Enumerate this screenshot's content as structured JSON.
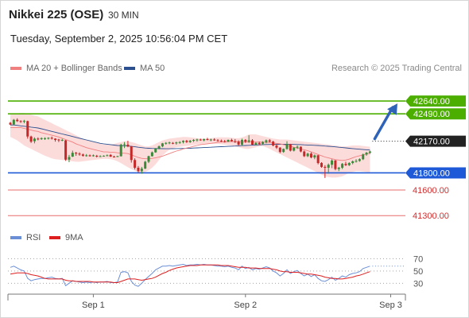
{
  "header": {
    "title": "Nikkei 225 (OSE)",
    "interval": "30 MIN",
    "datetime": "Tuesday, September 2, 2025 10:56:04 PM CET",
    "credit": "Research © 2025 Trading Central"
  },
  "legend": {
    "ma20_label": "MA 20 + Bollinger Bands",
    "ma50_label": "MA 50",
    "rsi_label": "RSI",
    "rsi_ma_label": "9MA"
  },
  "colors": {
    "up": "#3a8a3a",
    "down": "#c62828",
    "ma20": "#f07f7f",
    "ma50": "#2b4f8f",
    "band": "#fbd5d5",
    "resistance": "#4caf00",
    "support": "#1e5ad8",
    "target_line": "#e86b6b",
    "last_price": "#222222",
    "arrow": "#2f63b8",
    "rsi": "#6a8fd6",
    "rsi_ma": "#dd1f1f"
  },
  "chart_data": {
    "type": "candlestick",
    "price_levels": [
      {
        "value": 42640.0,
        "label": "42640.00",
        "kind": "resistance"
      },
      {
        "value": 42490.0,
        "label": "42490.00",
        "kind": "resistance"
      },
      {
        "value": 42170.0,
        "label": "42170.00",
        "kind": "last"
      },
      {
        "value": 41800.0,
        "label": "41800.00",
        "kind": "support"
      },
      {
        "value": 41600.0,
        "label": "41600.00",
        "kind": "target"
      },
      {
        "value": 41300.0,
        "label": "41300.00",
        "kind": "target"
      }
    ],
    "last_price": 42170,
    "arrow_target": 42640,
    "price_ylim": [
      41200,
      42780
    ],
    "x_labels": [
      "Sep 1",
      "Sep 2",
      "Sep 3"
    ],
    "x_label_index": [
      24,
      68,
      110
    ],
    "candles": [
      [
        42385,
        42395,
        42360,
        42365
      ],
      [
        42365,
        42430,
        42360,
        42420
      ],
      [
        42420,
        42438,
        42395,
        42405
      ],
      [
        42405,
        42415,
        42385,
        42400
      ],
      [
        42400,
        42420,
        42380,
        42408
      ],
      [
        42405,
        42410,
        42200,
        42225
      ],
      [
        42225,
        42235,
        42150,
        42165
      ],
      [
        42170,
        42215,
        42145,
        42200
      ],
      [
        42200,
        42215,
        42180,
        42195
      ],
      [
        42195,
        42215,
        42185,
        42205
      ],
      [
        42205,
        42215,
        42185,
        42205
      ],
      [
        42205,
        42215,
        42190,
        42210
      ],
      [
        42210,
        42225,
        42190,
        42200
      ],
      [
        42200,
        42205,
        42165,
        42185
      ],
      [
        42190,
        42198,
        42160,
        42180
      ],
      [
        42180,
        42198,
        42170,
        42185
      ],
      [
        42180,
        42185,
        41940,
        41955
      ],
      [
        41955,
        42010,
        41925,
        41985
      ],
      [
        41990,
        42060,
        41985,
        42035
      ],
      [
        42035,
        42045,
        42000,
        42025
      ],
      [
        42025,
        42040,
        42000,
        42015
      ],
      [
        42015,
        42025,
        41990,
        42000
      ],
      [
        42000,
        42020,
        41990,
        42005
      ],
      [
        42005,
        42015,
        41990,
        41995
      ],
      [
        41995,
        42015,
        41990,
        42005
      ],
      [
        42000,
        42010,
        41980,
        41990
      ],
      [
        41990,
        42005,
        41985,
        41995
      ],
      [
        41995,
        42005,
        41990,
        42000
      ],
      [
        42000,
        42015,
        41995,
        42005
      ],
      [
        42010,
        42020,
        41985,
        41990
      ],
      [
        41990,
        42000,
        41980,
        41985
      ],
      [
        41990,
        42000,
        41985,
        41995
      ],
      [
        41995,
        42140,
        41990,
        42130
      ],
      [
        42130,
        42160,
        42090,
        42135
      ],
      [
        42130,
        42175,
        42100,
        42110
      ],
      [
        42110,
        42115,
        41920,
        41950
      ],
      [
        41950,
        41970,
        41840,
        41860
      ],
      [
        41860,
        41880,
        41800,
        41820
      ],
      [
        41820,
        41870,
        41790,
        41850
      ],
      [
        41850,
        41940,
        41845,
        41930
      ],
      [
        41930,
        42000,
        41915,
        41995
      ],
      [
        41995,
        42050,
        41990,
        42040
      ],
      [
        42040,
        42090,
        42035,
        42085
      ],
      [
        42085,
        42120,
        42075,
        42110
      ],
      [
        42110,
        42150,
        42100,
        42145
      ],
      [
        42145,
        42160,
        42130,
        42150
      ],
      [
        42150,
        42165,
        42135,
        42155
      ],
      [
        42150,
        42160,
        42135,
        42145
      ],
      [
        42145,
        42165,
        42130,
        42155
      ],
      [
        42155,
        42170,
        42140,
        42160
      ],
      [
        42160,
        42180,
        42145,
        42175
      ],
      [
        42175,
        42185,
        42150,
        42160
      ],
      [
        42160,
        42185,
        42150,
        42175
      ],
      [
        42175,
        42195,
        42160,
        42185
      ],
      [
        42185,
        42200,
        42165,
        42190
      ],
      [
        42190,
        42200,
        42175,
        42180
      ],
      [
        42180,
        42200,
        42170,
        42195
      ],
      [
        42195,
        42210,
        42180,
        42185
      ],
      [
        42185,
        42200,
        42170,
        42190
      ],
      [
        42190,
        42205,
        42175,
        42180
      ],
      [
        42180,
        42195,
        42165,
        42175
      ],
      [
        42175,
        42190,
        42160,
        42170
      ],
      [
        42170,
        42185,
        42155,
        42165
      ],
      [
        42165,
        42190,
        42160,
        42185
      ],
      [
        42185,
        42200,
        42165,
        42170
      ],
      [
        42170,
        42195,
        42150,
        42165
      ],
      [
        42165,
        42180,
        42120,
        42130
      ],
      [
        42130,
        42200,
        42120,
        42185
      ],
      [
        42185,
        42195,
        42150,
        42165
      ],
      [
        42165,
        42240,
        42150,
        42180
      ],
      [
        42180,
        42195,
        42120,
        42130
      ],
      [
        42130,
        42160,
        42120,
        42150
      ],
      [
        42150,
        42165,
        42125,
        42135
      ],
      [
        42140,
        42170,
        42130,
        42160
      ],
      [
        42160,
        42190,
        42145,
        42180
      ],
      [
        42180,
        42195,
        42155,
        42165
      ],
      [
        42165,
        42175,
        42110,
        42120
      ],
      [
        42120,
        42140,
        42080,
        42095
      ],
      [
        42095,
        42100,
        42030,
        42045
      ],
      [
        42045,
        42085,
        42035,
        42080
      ],
      [
        42080,
        42170,
        42070,
        42135
      ],
      [
        42135,
        42140,
        42050,
        42060
      ],
      [
        42060,
        42100,
        42050,
        42095
      ],
      [
        42095,
        42120,
        42080,
        42105
      ],
      [
        42105,
        42110,
        42040,
        42050
      ],
      [
        42050,
        42060,
        41985,
        41995
      ],
      [
        41995,
        42035,
        41985,
        42025
      ],
      [
        42025,
        42040,
        41970,
        41980
      ],
      [
        41980,
        42015,
        41960,
        42005
      ],
      [
        42005,
        42010,
        41900,
        41915
      ],
      [
        41915,
        41925,
        41860,
        41870
      ],
      [
        41870,
        41890,
        41740,
        41860
      ],
      [
        41860,
        41910,
        41790,
        41895
      ],
      [
        41895,
        41960,
        41855,
        41945
      ],
      [
        41945,
        41950,
        41830,
        41845
      ],
      [
        41845,
        41870,
        41820,
        41860
      ],
      [
        41860,
        41915,
        41845,
        41905
      ],
      [
        41905,
        41930,
        41880,
        41890
      ],
      [
        41890,
        41925,
        41880,
        41915
      ],
      [
        41915,
        41945,
        41900,
        41935
      ],
      [
        41935,
        41960,
        41920,
        41940
      ],
      [
        41940,
        41970,
        41930,
        41960
      ],
      [
        41960,
        42025,
        41950,
        42015
      ],
      [
        42015,
        42045,
        42000,
        42035
      ],
      [
        42035,
        42060,
        42020,
        42050
      ]
    ],
    "ma20": [
      42330,
      42330,
      42330,
      42330,
      42320,
      42310,
      42300,
      42290,
      42285,
      42270,
      42260,
      42250,
      42240,
      42230,
      42220,
      42205,
      42190,
      42175,
      42160,
      42140,
      42125,
      42110,
      42095,
      42085,
      42075,
      42065,
      42055,
      42045,
      42045,
      42040,
      42040,
      42035,
      42030,
      42030,
      42025,
      42010,
      41995,
      41980,
      41970,
      41965,
      41965,
      41970,
      41975,
      41985,
      41995,
      42010,
      42025,
      42040,
      42055,
      42065,
      42080,
      42090,
      42100,
      42110,
      42120,
      42130,
      42135,
      42140,
      42145,
      42150,
      42155,
      42160,
      42160,
      42165,
      42165,
      42165,
      42165,
      42160,
      42160,
      42160,
      42160,
      42160,
      42160,
      42160,
      42155,
      42155,
      42150,
      42145,
      42140,
      42130,
      42120,
      42110,
      42100,
      42090,
      42080,
      42070,
      42060,
      42045,
      42030,
      42015,
      42000,
      41985,
      41975,
      41965,
      41955,
      41950,
      41945,
      41950,
      41960,
      41975,
      41990,
      42000,
      42010,
      42020,
      42030
    ],
    "band_upper": [
      42480,
      42490,
      42495,
      42500,
      42500,
      42495,
      42480,
      42470,
      42460,
      42440,
      42420,
      42400,
      42380,
      42360,
      42340,
      42320,
      42300,
      42280,
      42260,
      42240,
      42220,
      42200,
      42185,
      42170,
      42160,
      42150,
      42140,
      42130,
      42130,
      42130,
      42140,
      42150,
      42160,
      42170,
      42170,
      42160,
      42150,
      42135,
      42120,
      42110,
      42110,
      42120,
      42140,
      42160,
      42180,
      42190,
      42200,
      42205,
      42210,
      42215,
      42220,
      42220,
      42215,
      42210,
      42205,
      42200,
      42200,
      42200,
      42205,
      42210,
      42215,
      42215,
      42215,
      42215,
      42210,
      42205,
      42205,
      42215,
      42230,
      42250,
      42250,
      42250,
      42240,
      42230,
      42220,
      42210,
      42200,
      42195,
      42190,
      42190,
      42190,
      42185,
      42180,
      42175,
      42170,
      42165,
      42160,
      42155,
      42150,
      42145,
      42140,
      42135,
      42130,
      42125,
      42120,
      42115,
      42110,
      42110,
      42115,
      42120,
      42120,
      42120,
      42115,
      42110,
      42105
    ],
    "band_lower": [
      42220,
      42200,
      42180,
      42150,
      42120,
      42100,
      42080,
      42060,
      42040,
      42020,
      42000,
      41985,
      41970,
      41960,
      41955,
      41950,
      41945,
      41940,
      41935,
      41930,
      41930,
      41935,
      41940,
      41945,
      41950,
      41955,
      41960,
      41965,
      41965,
      41960,
      41950,
      41935,
      41915,
      41890,
      41865,
      41845,
      41825,
      41810,
      41805,
      41810,
      41830,
      41860,
      41900,
      41950,
      42000,
      42040,
      42070,
      42090,
      42100,
      42105,
      42110,
      42115,
      42120,
      42125,
      42130,
      42135,
      42140,
      42140,
      42140,
      42140,
      42140,
      42135,
      42130,
      42125,
      42120,
      42110,
      42100,
      42090,
      42080,
      42080,
      42090,
      42100,
      42110,
      42115,
      42100,
      42080,
      42060,
      42040,
      42020,
      42000,
      41980,
      41960,
      41940,
      41920,
      41900,
      41880,
      41860,
      41840,
      41820,
      41800,
      41780,
      41760,
      41750,
      41745,
      41745,
      41750,
      41760,
      41780,
      41800,
      41810,
      41820,
      41820,
      41815,
      41810,
      41805
    ],
    "ma50": [
      42360,
      42360,
      42355,
      42350,
      42345,
      42340,
      42335,
      42330,
      42325,
      42315,
      42305,
      42295,
      42285,
      42275,
      42265,
      42255,
      42245,
      42235,
      42225,
      42215,
      42205,
      42195,
      42185,
      42175,
      42165,
      42155,
      42145,
      42140,
      42135,
      42130,
      42125,
      42120,
      42118,
      42116,
      42114,
      42110,
      42105,
      42100,
      42095,
      42090,
      42088,
      42086,
      42085,
      42084,
      42083,
      42082,
      42082,
      42083,
      42084,
      42085,
      42086,
      42087,
      42088,
      42090,
      42092,
      42094,
      42096,
      42098,
      42100,
      42102,
      42104,
      42106,
      42108,
      42110,
      42112,
      42114,
      42116,
      42118,
      42120,
      42122,
      42124,
      42126,
      42128,
      42130,
      42131,
      42132,
      42133,
      42134,
      42134,
      42134,
      42134,
      42133,
      42132,
      42131,
      42130,
      42128,
      42126,
      42124,
      42122,
      42120,
      42117,
      42114,
      42111,
      42108,
      42104,
      42100,
      42096,
      42092,
      42088,
      42084,
      42080,
      42076,
      42073,
      42070,
      42067
    ],
    "rsi": {
      "levels": [
        70,
        50,
        30
      ],
      "ylim": [
        20,
        85
      ],
      "rsi": [
        56,
        58,
        55,
        52,
        50,
        38,
        34,
        36,
        37,
        38,
        38,
        39,
        40,
        38,
        37,
        38,
        26,
        30,
        34,
        33,
        32,
        31,
        32,
        31,
        32,
        31,
        32,
        32,
        33,
        31,
        31,
        32,
        48,
        49,
        47,
        33,
        27,
        25,
        30,
        36,
        41,
        46,
        52,
        55,
        58,
        58,
        59,
        58,
        59,
        60,
        61,
        59,
        60,
        60,
        61,
        60,
        61,
        60,
        60,
        59,
        58,
        58,
        57,
        58,
        56,
        55,
        52,
        58,
        54,
        56,
        52,
        54,
        53,
        55,
        57,
        55,
        50,
        47,
        42,
        46,
        52,
        46,
        49,
        51,
        46,
        42,
        45,
        41,
        44,
        38,
        34,
        33,
        36,
        40,
        35,
        38,
        42,
        40,
        44,
        46,
        47,
        49,
        54,
        56,
        58
      ],
      "ma9": [
        45,
        46,
        47,
        47,
        47,
        46,
        44,
        43,
        42,
        40,
        38,
        37,
        37,
        37,
        37,
        37,
        35,
        34,
        34,
        33,
        33,
        33,
        33,
        33,
        32,
        32,
        32,
        32,
        32,
        32,
        31,
        31,
        33,
        35,
        37,
        37,
        37,
        36,
        35,
        36,
        37,
        38,
        40,
        43,
        46,
        48,
        51,
        53,
        55,
        56,
        57,
        58,
        59,
        59,
        59,
        60,
        60,
        60,
        60,
        60,
        60,
        59,
        59,
        59,
        58,
        57,
        56,
        56,
        56,
        55,
        55,
        55,
        54,
        54,
        54,
        54,
        53,
        52,
        50,
        49,
        49,
        48,
        48,
        48,
        47,
        46,
        45,
        45,
        44,
        43,
        42,
        40,
        39,
        38,
        38,
        37,
        37,
        38,
        39,
        40,
        42,
        43,
        45,
        47,
        49
      ]
    }
  }
}
